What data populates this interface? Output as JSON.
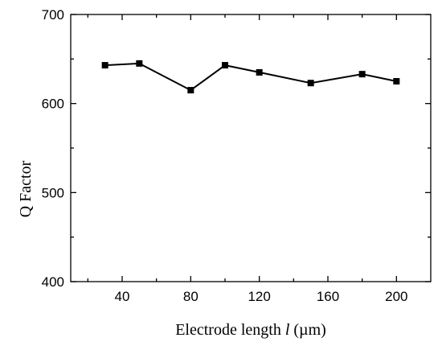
{
  "chart_data": {
    "type": "line",
    "xlabel_prefix": "Electrode length ",
    "xlabel_var": "l",
    "xlabel_unit": " (µm)",
    "ylabel": "Q Factor",
    "xlim": [
      10,
      220
    ],
    "ylim": [
      400,
      700
    ],
    "x_ticks": [
      40,
      80,
      120,
      160,
      200
    ],
    "x_minor_ticks": [
      20,
      60,
      100,
      140,
      180,
      220
    ],
    "y_ticks": [
      400,
      500,
      600,
      700
    ],
    "y_minor_ticks": [
      450,
      550,
      650
    ],
    "grid": false,
    "series": [
      {
        "marker": "square",
        "color": "#000000",
        "x": [
          30,
          50,
          80,
          100,
          120,
          150,
          180,
          200
        ],
        "y": [
          643,
          645,
          615,
          643,
          635,
          623,
          633,
          625
        ]
      }
    ]
  }
}
